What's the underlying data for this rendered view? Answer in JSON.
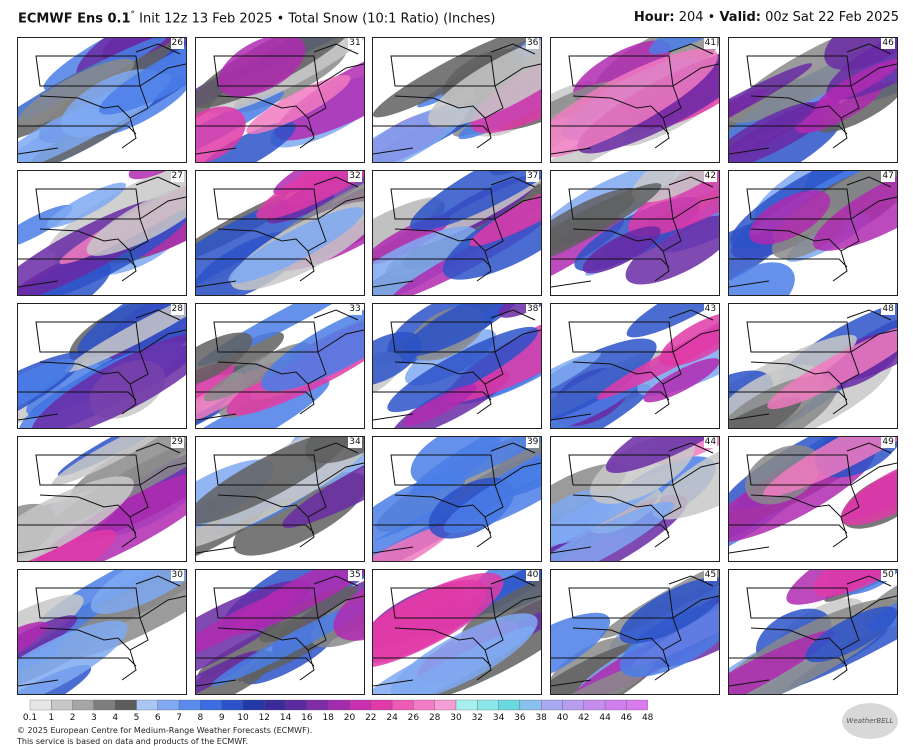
{
  "header": {
    "model": "ECMWF Ens 0.1",
    "degree": "°",
    "rest": "Init 12z 13 Feb 2025 • Total Snow (10:1 Ratio) (Inches)",
    "hour_label": "Hour:",
    "hour_value": "204 •",
    "valid_label": "Valid:",
    "valid_value": "00z Sat 22 Feb 2025"
  },
  "panels": [
    [
      26,
      31,
      36,
      41,
      46
    ],
    [
      27,
      32,
      37,
      42,
      47
    ],
    [
      28,
      33,
      38,
      43,
      48
    ],
    [
      29,
      34,
      39,
      44,
      49
    ],
    [
      30,
      35,
      40,
      45,
      50
    ]
  ],
  "legend": {
    "labels": [
      "0.1",
      "1",
      "2",
      "3",
      "4",
      "5",
      "6",
      "7",
      "8",
      "9",
      "10",
      "12",
      "14",
      "16",
      "18",
      "20",
      "22",
      "24",
      "26",
      "28",
      "30",
      "32",
      "34",
      "36",
      "38",
      "40",
      "42",
      "44",
      "46",
      "48"
    ],
    "colors": [
      "#e6e6e6",
      "#c8c8c8",
      "#a5a5a5",
      "#7e7e7e",
      "#5c5c5c",
      "#a9c6f5",
      "#7fa9f2",
      "#5b8ced",
      "#3a6ee2",
      "#2b52c8",
      "#2439a8",
      "#3b2a9a",
      "#5b2aa0",
      "#7e2ca8",
      "#a32cae",
      "#c92fb0",
      "#e03aa8",
      "#ee5ab6",
      "#f27cc6",
      "#f59dd6",
      "#a8f0f0",
      "#8ae8ea",
      "#6ad8e0",
      "#88c0ee",
      "#a8a8f2",
      "#b89cf0",
      "#c48cee",
      "#cf7eee",
      "#d97aef"
    ]
  },
  "footer": {
    "line1": "© 2025 European Centre for Medium-Range Weather Forecasts (ECMWF).",
    "line2": "This service is based on data and products of the ECMWF.",
    "logo": "WeatherBELL"
  }
}
